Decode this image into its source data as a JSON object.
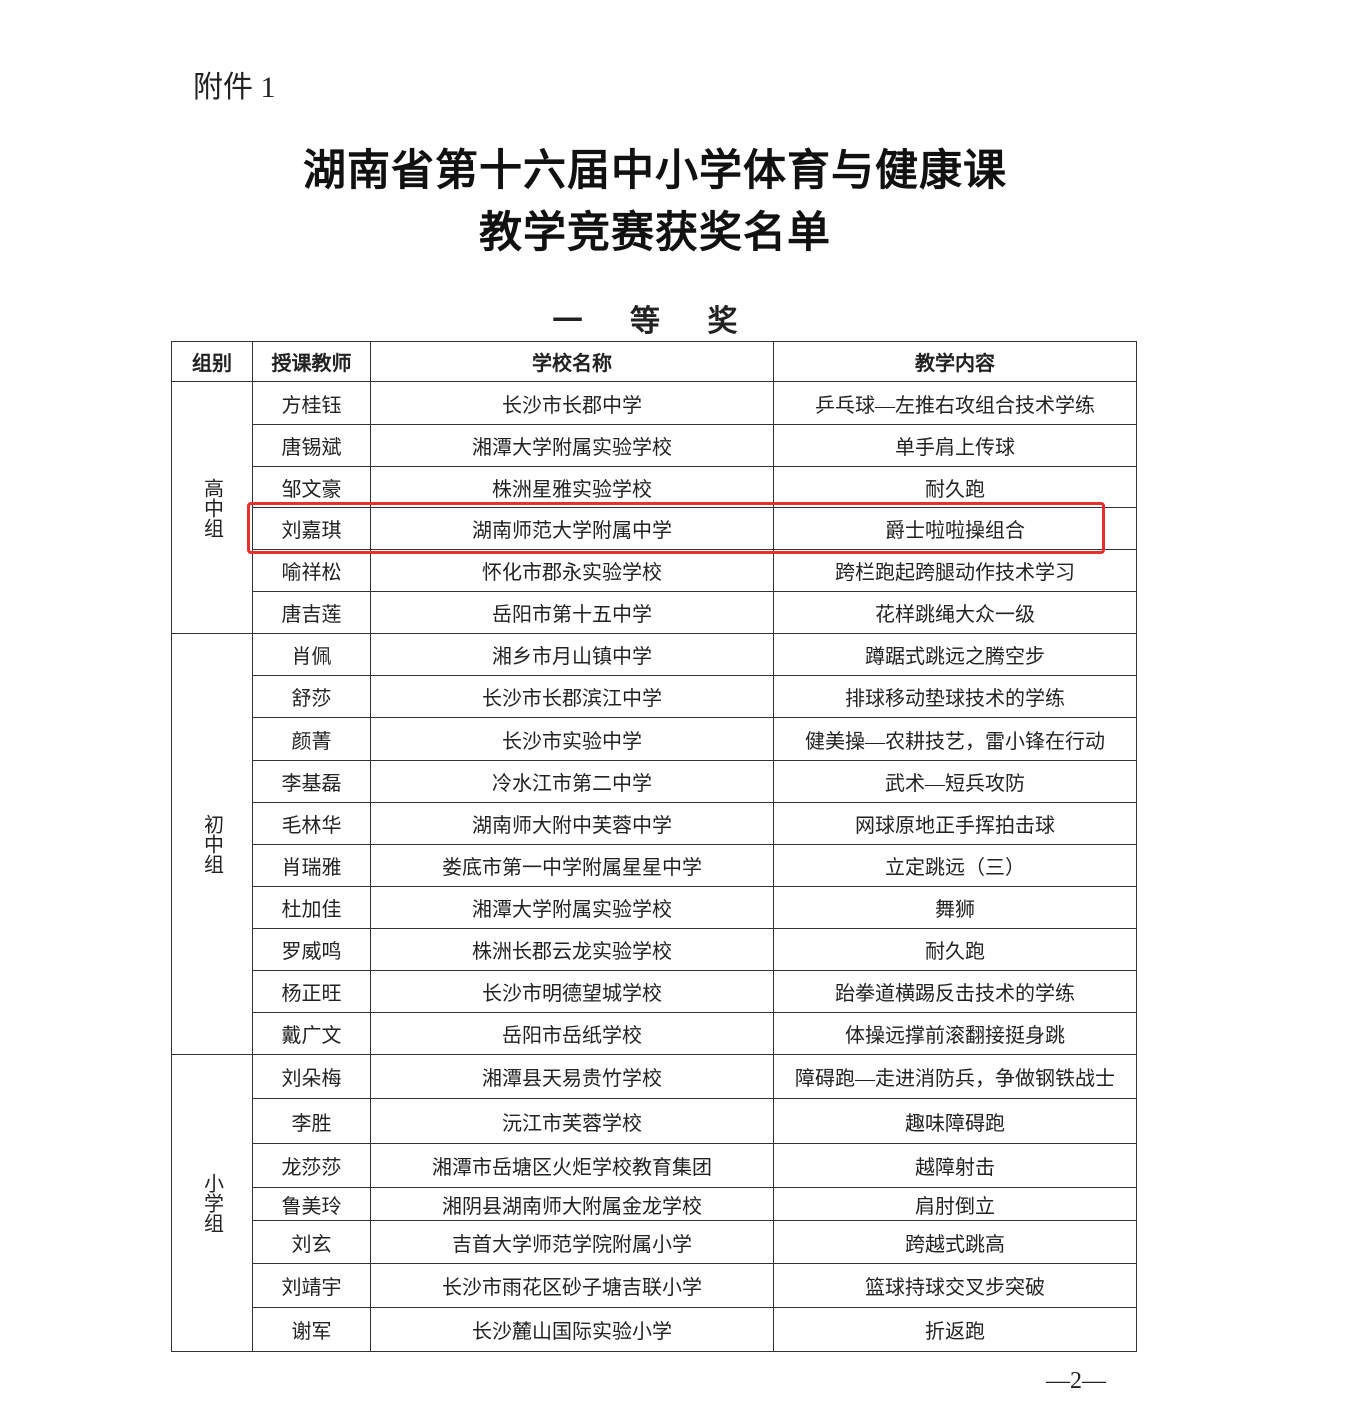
{
  "attachment_label": "附件 1",
  "title_line1": "湖南省第十六届中小学体育与健康课",
  "title_line2": "教学竞赛获奖名单",
  "prize_level": "一 等 奖",
  "table": {
    "headers": [
      "组别",
      "授课教师",
      "学校名称",
      "教学内容"
    ],
    "groups": [
      {
        "name": "高中组",
        "rows": [
          [
            "方桂钰",
            "长沙市长郡中学",
            "乒乓球—左推右攻组合技术学练"
          ],
          [
            "唐锡斌",
            "湘潭大学附属实验学校",
            "单手肩上传球"
          ],
          [
            "邹文豪",
            "株洲星雅实验学校",
            "耐久跑"
          ],
          [
            "刘嘉琪",
            "湖南师范大学附属中学",
            "爵士啦啦操组合"
          ],
          [
            "喻祥松",
            "怀化市郡永实验学校",
            "跨栏跑起跨腿动作技术学习"
          ],
          [
            "唐吉莲",
            "岳阳市第十五中学",
            "花样跳绳大众一级"
          ]
        ]
      },
      {
        "name": "初中组",
        "rows": [
          [
            "肖佩",
            "湘乡市月山镇中学",
            "蹲踞式跳远之腾空步"
          ],
          [
            "舒莎",
            "长沙市长郡滨江中学",
            "排球移动垫球技术的学练"
          ],
          [
            "颜菁",
            "长沙市实验中学",
            "健美操—农耕技艺，雷小锋在行动"
          ],
          [
            "李基磊",
            "冷水江市第二中学",
            "武术—短兵攻防"
          ],
          [
            "毛林华",
            "湖南师大附中芙蓉中学",
            "网球原地正手挥拍击球"
          ],
          [
            "肖瑞雅",
            "娄底市第一中学附属星星中学",
            "立定跳远（三）"
          ],
          [
            "杜加佳",
            "湘潭大学附属实验学校",
            "舞狮"
          ],
          [
            "罗威鸣",
            "株洲长郡云龙实验学校",
            "耐久跑"
          ],
          [
            "杨正旺",
            "长沙市明德望城学校",
            "跆拳道横踢反击技术的学练"
          ],
          [
            "戴广文",
            "岳阳市岳纸学校",
            "体操远撑前滚翻接挺身跳"
          ]
        ]
      },
      {
        "name": "小学组",
        "rows": [
          [
            "刘朵梅",
            "湘潭县天易贵竹学校",
            "障碍跑—走进消防兵，争做钢铁战士"
          ],
          [
            "李胜",
            "沅江市芙蓉学校",
            "趣味障碍跑"
          ],
          [
            "龙莎莎",
            "湘潭市岳塘区火炬学校教育集团",
            "越障射击"
          ],
          [
            "鲁美玲",
            "湘阴县湖南师大附属金龙学校",
            "肩肘倒立"
          ],
          [
            "刘玄",
            "吉首大学师范学院附属小学",
            "跨越式跳高"
          ],
          [
            "刘靖宇",
            "长沙市雨花区砂子塘吉联小学",
            "篮球持球交叉步突破"
          ],
          [
            "谢军",
            "长沙麓山国际实验小学",
            "折返跑"
          ]
        ]
      }
    ]
  },
  "highlight_color": "#e8302a",
  "page_number": "—2—"
}
